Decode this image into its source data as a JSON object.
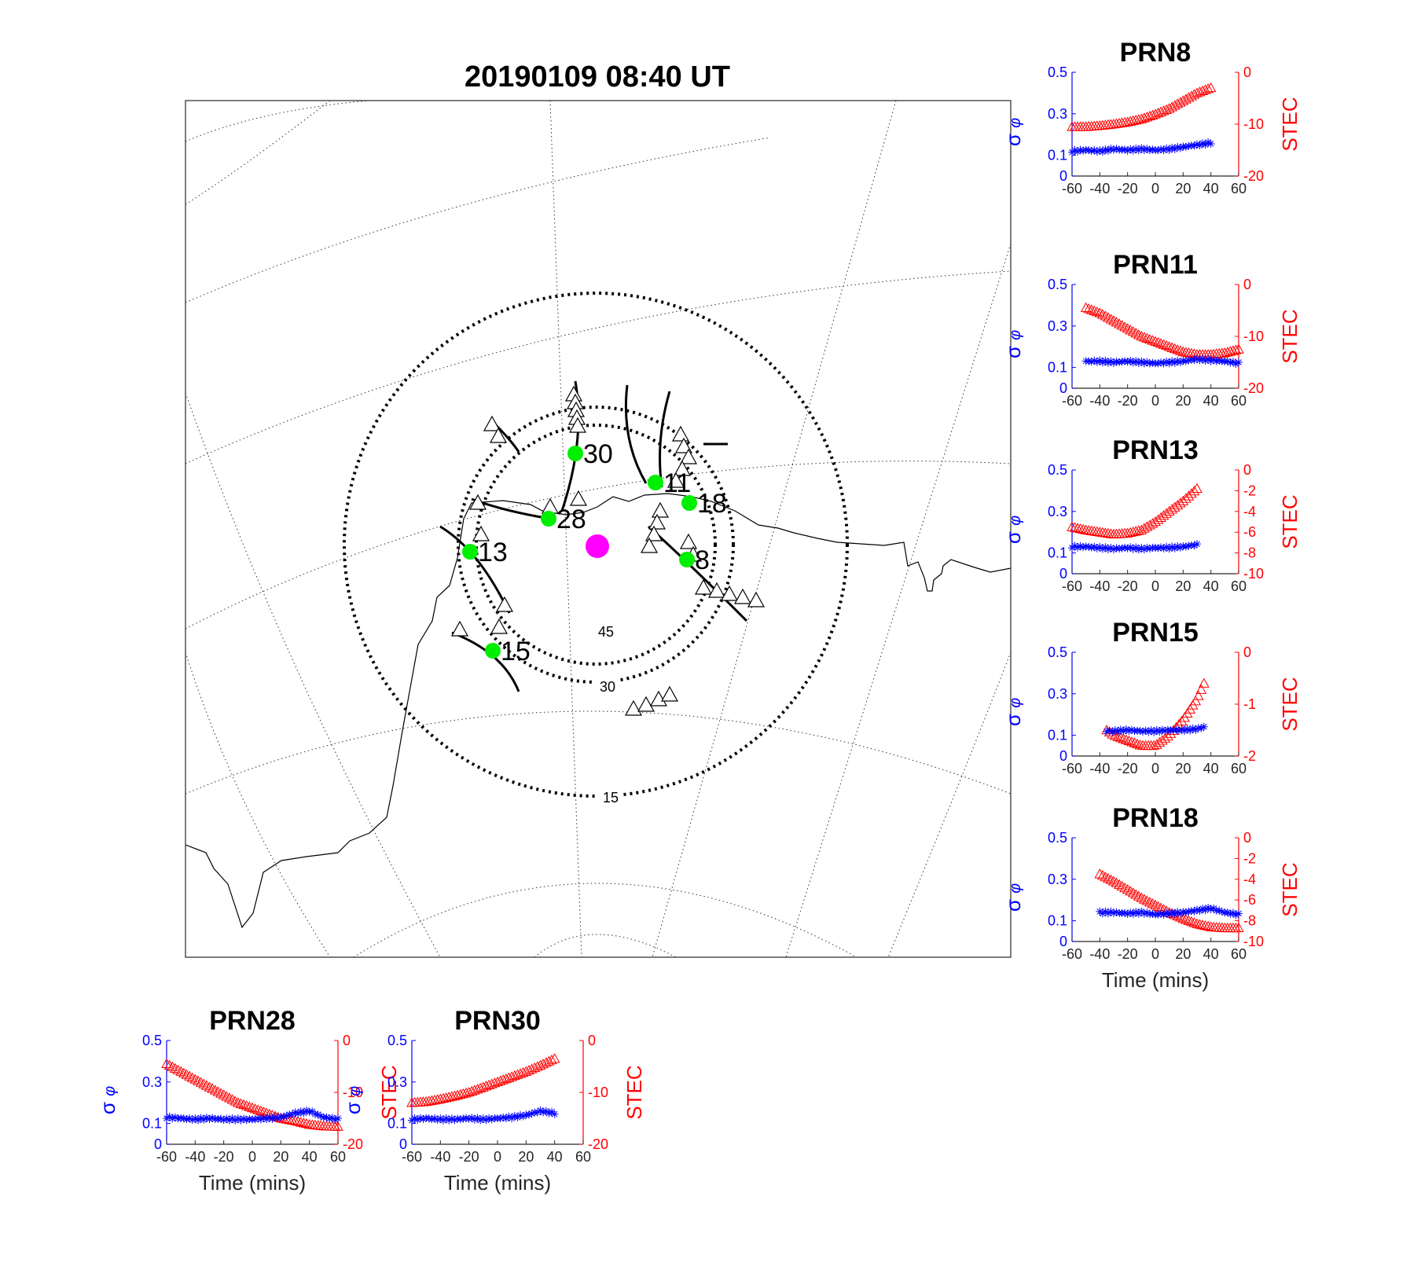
{
  "map": {
    "title": "20190109 08:40 UT",
    "elevation_rings": [
      {
        "elevation": 45,
        "label": "45"
      },
      {
        "elevation": 30,
        "label": "30"
      },
      {
        "elevation": 15,
        "label": "15"
      }
    ],
    "satellites": [
      {
        "prn": "30",
        "label": "30"
      },
      {
        "prn": "11",
        "label": "11"
      },
      {
        "prn": "18",
        "label": "18"
      },
      {
        "prn": "28",
        "label": "28"
      },
      {
        "prn": "13",
        "label": "13"
      },
      {
        "prn": "8",
        "label": "8"
      },
      {
        "prn": "15",
        "label": "15"
      }
    ],
    "colors": {
      "satellite": "#00ee00",
      "station": "#ff00ff",
      "track": "#000000"
    }
  },
  "colors": {
    "sigma": "#0000ff",
    "stec": "#ff0000"
  },
  "axis_labels": {
    "sigma": "σ",
    "sigma_sub": "φ",
    "stec": "STEC",
    "time": "Time (mins)"
  },
  "chart_data": [
    {
      "type": "scatter",
      "title": "PRN8",
      "x": [
        -60,
        -50,
        -40,
        -30,
        -20,
        -10,
        0,
        10,
        20,
        30,
        40
      ],
      "series": [
        {
          "values": [
            0.12,
            0.125,
            0.12,
            0.13,
            0.125,
            0.13,
            0.125,
            0.13,
            0.14,
            0.15,
            0.16
          ]
        },
        {
          "values": [
            -10.5,
            -10.5,
            -10.3,
            -10,
            -9.6,
            -9,
            -8.1,
            -7,
            -5.5,
            -4,
            -3
          ]
        }
      ],
      "xlim": [
        -60,
        60
      ],
      "ylim_left": [
        0,
        0.5
      ],
      "ylim_right": [
        -20,
        0
      ],
      "xticks": [
        -60,
        -40,
        -20,
        0,
        20,
        40,
        60
      ],
      "yticks_left": [
        0,
        0.1,
        0.3,
        0.5
      ],
      "yticks_right": [
        -20,
        -10,
        0
      ]
    },
    {
      "type": "scatter",
      "title": "PRN11",
      "x": [
        -50,
        -40,
        -30,
        -20,
        -10,
        0,
        10,
        20,
        30,
        40,
        50,
        60
      ],
      "series": [
        {
          "values": [
            0.13,
            0.13,
            0.125,
            0.13,
            0.125,
            0.12,
            0.125,
            0.13,
            0.14,
            0.135,
            0.13,
            0.12
          ]
        },
        {
          "values": [
            -4.5,
            -5.5,
            -7,
            -8.5,
            -10,
            -11,
            -12,
            -13,
            -13.5,
            -13.5,
            -13.2,
            -12.5
          ]
        }
      ],
      "xlim": [
        -60,
        60
      ],
      "ylim_left": [
        0,
        0.5
      ],
      "ylim_right": [
        -20,
        0
      ],
      "xticks": [
        -60,
        -40,
        -20,
        0,
        20,
        40,
        60
      ],
      "yticks_left": [
        0,
        0.1,
        0.3,
        0.5
      ],
      "yticks_right": [
        -20,
        -10,
        0
      ]
    },
    {
      "type": "scatter",
      "title": "PRN13",
      "x": [
        -60,
        -50,
        -40,
        -30,
        -20,
        -10,
        0,
        10,
        20,
        30
      ],
      "series": [
        {
          "values": [
            0.13,
            0.13,
            0.125,
            0.12,
            0.125,
            0.12,
            0.125,
            0.125,
            0.13,
            0.14
          ]
        },
        {
          "values": [
            -5.5,
            -5.8,
            -6,
            -6.2,
            -6.1,
            -5.8,
            -5,
            -4,
            -3,
            -1.8
          ]
        }
      ],
      "xlim": [
        -60,
        60
      ],
      "ylim_left": [
        0,
        0.5
      ],
      "ylim_right": [
        -10,
        0
      ],
      "xticks": [
        -60,
        -40,
        -20,
        0,
        20,
        40,
        60
      ],
      "yticks_left": [
        0,
        0.1,
        0.3,
        0.5
      ],
      "yticks_right": [
        -10,
        -8,
        -6,
        -4,
        -2,
        0
      ]
    },
    {
      "type": "scatter",
      "title": "PRN15",
      "x": [
        -35,
        -30,
        -20,
        -10,
        0,
        10,
        20,
        30,
        35
      ],
      "series": [
        {
          "values": [
            0.12,
            0.12,
            0.125,
            0.12,
            0.12,
            0.125,
            0.125,
            0.13,
            0.14
          ]
        },
        {
          "values": [
            -1.5,
            -1.6,
            -1.7,
            -1.8,
            -1.8,
            -1.6,
            -1.3,
            -0.9,
            -0.6
          ]
        }
      ],
      "xlim": [
        -60,
        60
      ],
      "ylim_left": [
        0,
        0.5
      ],
      "ylim_right": [
        -2,
        0
      ],
      "xticks": [
        -60,
        -40,
        -20,
        0,
        20,
        40,
        60
      ],
      "yticks_left": [
        0,
        0.1,
        0.3,
        0.5
      ],
      "yticks_right": [
        -2,
        -1,
        0
      ]
    },
    {
      "type": "scatter",
      "title": "PRN18",
      "x": [
        -40,
        -30,
        -20,
        -10,
        0,
        10,
        20,
        30,
        40,
        50,
        60
      ],
      "series": [
        {
          "values": [
            0.14,
            0.14,
            0.135,
            0.14,
            0.13,
            0.135,
            0.14,
            0.15,
            0.16,
            0.14,
            0.13
          ]
        },
        {
          "values": [
            -3.5,
            -4.2,
            -5,
            -5.8,
            -6.5,
            -7.2,
            -7.8,
            -8.3,
            -8.6,
            -8.7,
            -8.7
          ]
        }
      ],
      "xlim": [
        -60,
        60
      ],
      "ylim_left": [
        0,
        0.5
      ],
      "ylim_right": [
        -10,
        0
      ],
      "xticks": [
        -60,
        -40,
        -20,
        0,
        20,
        40,
        60
      ],
      "yticks_left": [
        0,
        0.1,
        0.3,
        0.5
      ],
      "yticks_right": [
        -10,
        -8,
        -6,
        -4,
        -2,
        0
      ],
      "xlabel": "Time (mins)"
    },
    {
      "type": "scatter",
      "title": "PRN28",
      "x": [
        -60,
        -50,
        -40,
        -30,
        -20,
        -10,
        0,
        10,
        20,
        30,
        40,
        50,
        60
      ],
      "series": [
        {
          "values": [
            0.13,
            0.125,
            0.12,
            0.125,
            0.12,
            0.12,
            0.12,
            0.125,
            0.13,
            0.15,
            0.16,
            0.13,
            0.12
          ]
        },
        {
          "values": [
            -4.5,
            -6,
            -7.5,
            -9,
            -10.5,
            -12,
            -13,
            -14,
            -15,
            -15.5,
            -16.2,
            -16.5,
            -16.6
          ]
        }
      ],
      "xlim": [
        -60,
        60
      ],
      "ylim_left": [
        0,
        0.5
      ],
      "ylim_right": [
        -20,
        0
      ],
      "xticks": [
        -60,
        -40,
        -20,
        0,
        20,
        40,
        60
      ],
      "yticks_left": [
        0,
        0.1,
        0.3,
        0.5
      ],
      "yticks_right": [
        -20,
        -10,
        0
      ],
      "xlabel": "Time (mins)"
    },
    {
      "type": "scatter",
      "title": "PRN30",
      "x": [
        -60,
        -50,
        -40,
        -30,
        -20,
        -10,
        0,
        10,
        20,
        30,
        40
      ],
      "series": [
        {
          "values": [
            0.12,
            0.125,
            0.12,
            0.12,
            0.125,
            0.12,
            0.125,
            0.13,
            0.14,
            0.16,
            0.15
          ]
        },
        {
          "values": [
            -12,
            -11.8,
            -11.3,
            -10.7,
            -10,
            -9,
            -8,
            -7,
            -6,
            -4.8,
            -3.5
          ]
        }
      ],
      "xlim": [
        -60,
        60
      ],
      "ylim_left": [
        0,
        0.5
      ],
      "ylim_right": [
        -20,
        0
      ],
      "xticks": [
        -60,
        -40,
        -20,
        0,
        20,
        40,
        60
      ],
      "yticks_left": [
        0,
        0.1,
        0.3,
        0.5
      ],
      "yticks_right": [
        -20,
        -10,
        0
      ],
      "xlabel": "Time (mins)"
    }
  ]
}
